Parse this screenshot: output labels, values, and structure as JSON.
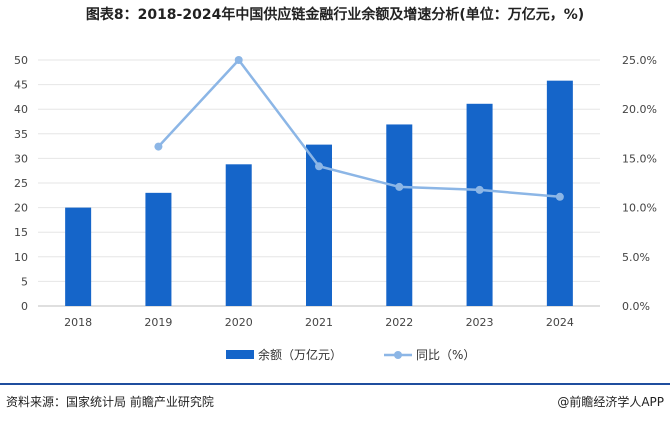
{
  "title": "图表8：2018-2024年中国供应链金融行业余额及增速分析(单位：万亿元，%)",
  "chart_data": {
    "type": "bar",
    "categories": [
      "2018",
      "2019",
      "2020",
      "2021",
      "2022",
      "2023",
      "2024"
    ],
    "series": [
      {
        "name": "余额（万亿元）",
        "type": "bar",
        "axis": "left",
        "values": [
          20.0,
          23.0,
          28.8,
          32.8,
          36.9,
          41.1,
          45.8
        ]
      },
      {
        "name": "同比（%）",
        "type": "line",
        "axis": "right",
        "values": [
          null,
          16.2,
          25.0,
          14.2,
          12.1,
          11.8,
          11.1
        ]
      }
    ],
    "y_left": {
      "min": 0,
      "max": 50,
      "ticks": [
        "0",
        "5",
        "10",
        "15",
        "20",
        "25",
        "30",
        "35",
        "40",
        "45",
        "50"
      ]
    },
    "y_right": {
      "min": 0,
      "max": 25,
      "ticks": [
        "0.0%",
        "5.0%",
        "10.0%",
        "15.0%",
        "20.0%",
        "25.0%"
      ]
    },
    "legend_position": "bottom",
    "colors": {
      "bar": "#1565c9",
      "line": "#8cb6e6"
    }
  },
  "footer": {
    "source": "资料来源：国家统计局 前瞻产业研究院",
    "brand": "@前瞻经济学人APP"
  }
}
